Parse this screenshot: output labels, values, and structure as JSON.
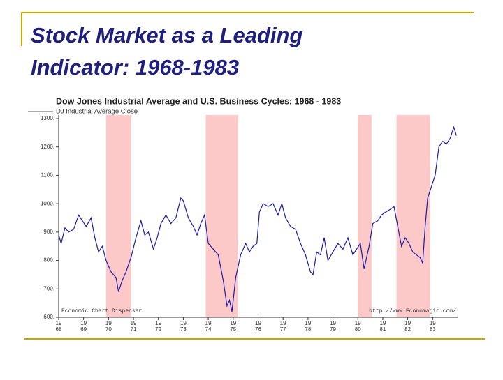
{
  "slide_title": "Stock Market as a Leading Indicator: 1968-1983",
  "chart_data": {
    "type": "line",
    "title": "Dow Jones Industrial Average and U.S. Business Cycles: 1968 - 1983",
    "y_label": "DJ Industrial Average Close",
    "annotations": [
      "Economic Chart Dispenser",
      "http://www.Economagic.com/"
    ],
    "xlim": [
      1968,
      1984
    ],
    "xticks": [
      1968,
      1969,
      1970,
      1971,
      1972,
      1973,
      1974,
      1975,
      1976,
      1977,
      1978,
      1979,
      1980,
      1981,
      1982,
      1983
    ],
    "ylim": [
      600,
      1300
    ],
    "yticks": [
      {
        "value": 600,
        "label": "600."
      },
      {
        "value": 700,
        "label": "700."
      },
      {
        "value": 800,
        "label": "800."
      },
      {
        "value": 900,
        "label": "900."
      },
      {
        "value": 1000,
        "label": "1000."
      },
      {
        "value": 1100,
        "label": "1100."
      },
      {
        "value": 1200,
        "label": "1200."
      },
      {
        "value": 1300,
        "label": "1300."
      }
    ],
    "recessions": [
      [
        1969.9,
        1970.9
      ],
      [
        1973.9,
        1975.2
      ],
      [
        1980.0,
        1980.55
      ],
      [
        1981.55,
        1982.9
      ]
    ],
    "recession_color": "#fcc8c8",
    "x": [
      1968.0,
      1968.1,
      1968.25,
      1968.4,
      1968.6,
      1968.8,
      1968.95,
      1969.1,
      1969.3,
      1969.45,
      1969.6,
      1969.75,
      1969.9,
      1970.1,
      1970.3,
      1970.4,
      1970.55,
      1970.7,
      1970.9,
      1971.1,
      1971.3,
      1971.45,
      1971.6,
      1971.8,
      1971.95,
      1972.1,
      1972.3,
      1972.5,
      1972.7,
      1972.9,
      1973.0,
      1973.2,
      1973.4,
      1973.55,
      1973.7,
      1973.85,
      1974.0,
      1974.2,
      1974.4,
      1974.6,
      1974.75,
      1974.85,
      1974.95,
      1975.1,
      1975.3,
      1975.5,
      1975.65,
      1975.8,
      1975.95,
      1976.05,
      1976.2,
      1976.4,
      1976.6,
      1976.8,
      1976.95,
      1977.1,
      1977.3,
      1977.5,
      1977.7,
      1977.9,
      1978.1,
      1978.2,
      1978.35,
      1978.5,
      1978.65,
      1978.8,
      1979.0,
      1979.2,
      1979.4,
      1979.6,
      1979.8,
      1979.95,
      1980.1,
      1980.25,
      1980.45,
      1980.6,
      1980.8,
      1980.95,
      1981.1,
      1981.3,
      1981.45,
      1981.6,
      1981.75,
      1981.9,
      1982.05,
      1982.2,
      1982.35,
      1982.5,
      1982.6,
      1982.7,
      1982.8,
      1982.95,
      1983.1,
      1983.25,
      1983.4,
      1983.55,
      1983.7,
      1983.85,
      1983.95
    ],
    "series": [
      {
        "name": "DJ Industrial Average Close",
        "color": "#1c1ca8",
        "values": [
          890,
          860,
          915,
          900,
          910,
          960,
          940,
          920,
          950,
          880,
          830,
          850,
          800,
          760,
          740,
          690,
          730,
          760,
          810,
          880,
          940,
          890,
          900,
          840,
          880,
          930,
          960,
          930,
          950,
          1020,
          1010,
          950,
          920,
          890,
          930,
          960,
          860,
          840,
          820,
          730,
          640,
          660,
          620,
          740,
          820,
          860,
          830,
          850,
          860,
          970,
          1000,
          990,
          1000,
          960,
          1000,
          950,
          920,
          910,
          860,
          820,
          760,
          750,
          830,
          820,
          880,
          800,
          830,
          860,
          840,
          880,
          820,
          840,
          860,
          770,
          850,
          930,
          940,
          960,
          970,
          980,
          990,
          920,
          850,
          880,
          860,
          830,
          820,
          810,
          790,
          920,
          1020,
          1060,
          1100,
          1200,
          1220,
          1210,
          1230,
          1270,
          1240
        ]
      }
    ]
  }
}
